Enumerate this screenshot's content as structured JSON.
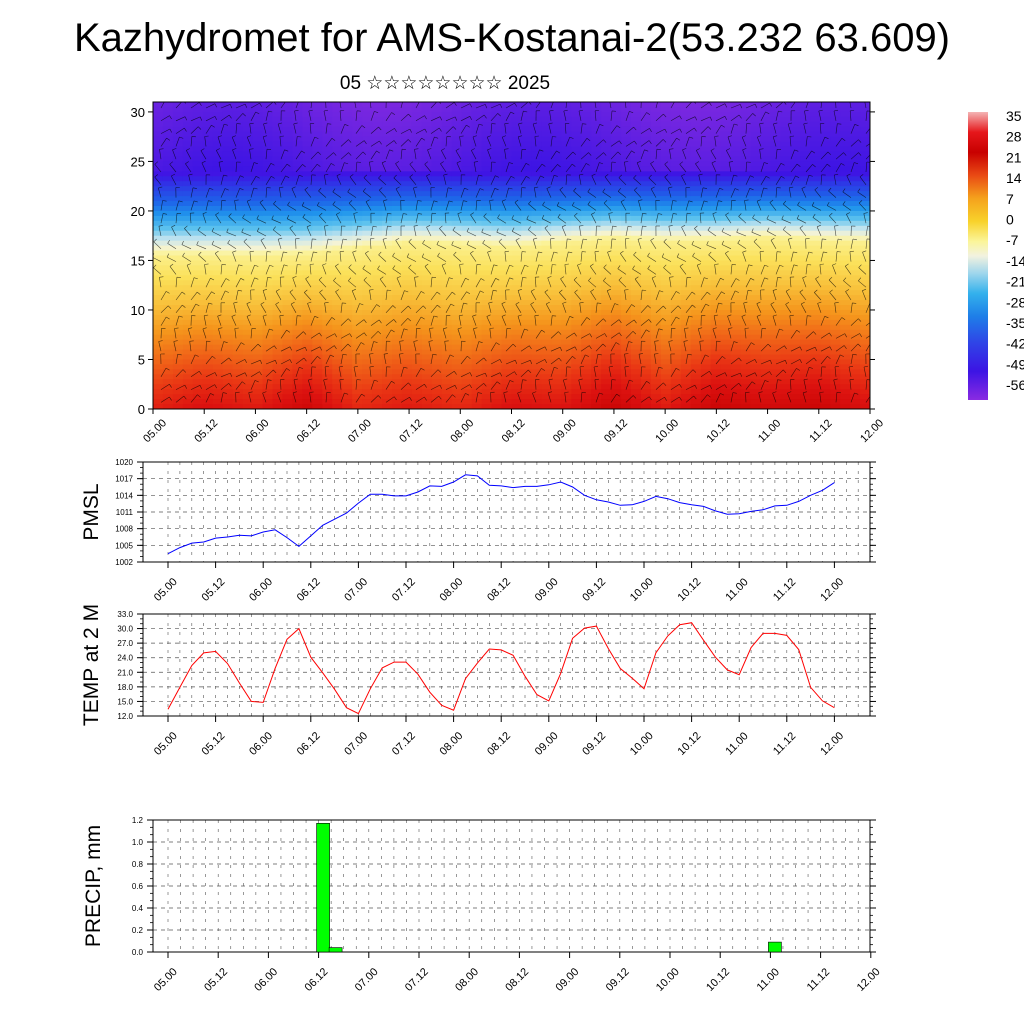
{
  "title": "Kazhydromet for AMS-Kostanai-2(53.232 63.609)",
  "subtitle": "05 ☆☆☆☆☆☆☆☆ 2025",
  "chart_data": [
    {
      "type": "heatmap",
      "name": "vertical-cross-section",
      "x_ticks": [
        "05.00",
        "05.12",
        "06.00",
        "06.12",
        "07.00",
        "07.12",
        "08.00",
        "08.12",
        "09.00",
        "09.12",
        "10.00",
        "10.12",
        "11.00",
        "11.12",
        "12.00"
      ],
      "y_ticks": [
        0,
        5,
        10,
        15,
        20,
        25,
        30
      ],
      "ylim": [
        0,
        31
      ],
      "colorbar": {
        "labels": [
          "35",
          "28",
          "21",
          "14",
          "7",
          "0",
          "-7",
          "-14",
          "-21",
          "-28",
          "-35",
          "-42",
          "-49",
          "-56"
        ],
        "colors": [
          "#f4b4b4",
          "#e6171b",
          "#c80000",
          "#e94a14",
          "#f5a21c",
          "#f8d22b",
          "#fbf59a",
          "#f2f2e0",
          "#9fd6ec",
          "#33b1ec",
          "#1e7ee8",
          "#2f45e7",
          "#3c14e4",
          "#8a2be2"
        ]
      },
      "cross_section": {
        "columns_x": [
          0,
          0.5,
          1,
          1.5,
          2,
          2.5,
          3,
          3.5,
          4,
          4.5,
          5,
          5.5,
          6,
          6.5,
          7
        ],
        "freezing_level": [
          15.5,
          15.5,
          15.4,
          15.6,
          16.2,
          16.8,
          16.6,
          16.3,
          16.8,
          17.2,
          16.9,
          17.0,
          17.3,
          17.0,
          16.8
        ],
        "surface_temp": [
          23,
          26,
          24,
          29,
          22,
          24,
          22,
          26,
          25,
          30,
          24,
          30,
          28,
          30,
          26
        ]
      }
    },
    {
      "type": "line",
      "name": "pmsl",
      "ylabel": "PMSL",
      "y_ticks": [
        1002,
        1005,
        1008,
        1011,
        1014,
        1017,
        1020
      ],
      "ylim": [
        1002,
        1020
      ],
      "x_ticks": [
        "05.00",
        "05.12",
        "06.00",
        "06.12",
        "07.00",
        "07.12",
        "08.00",
        "08.12",
        "09.00",
        "09.12",
        "10.00",
        "10.12",
        "11.00",
        "11.12",
        "12.00"
      ],
      "series": [
        {
          "color": "#0000ff",
          "values": [
            1003.5,
            1004.6,
            1005.4,
            1005.6,
            1006.3,
            1006.5,
            1006.8,
            1006.7,
            1007.4,
            1007.8,
            1006.4,
            1004.8,
            1006.7,
            1008.6,
            1009.7,
            1010.8,
            1012.6,
            1014.2,
            1014.2,
            1013.9,
            1013.9,
            1014.6,
            1015.7,
            1015.6,
            1016.4,
            1017.7,
            1017.5,
            1015.8,
            1015.7,
            1015.4,
            1015.6,
            1015.6,
            1015.9,
            1016.4,
            1015.5,
            1014.0,
            1013.2,
            1012.8,
            1012.2,
            1012.3,
            1012.9,
            1013.8,
            1013.4,
            1012.7,
            1012.3,
            1012.0,
            1011.2,
            1010.6,
            1010.7,
            1011.1,
            1011.4,
            1012.1,
            1012.2,
            1012.9,
            1014.0,
            1014.9,
            1016.3
          ]
        }
      ]
    },
    {
      "type": "line",
      "name": "temp-2m",
      "ylabel": "TEMP at 2 M",
      "y_ticks": [
        "12.0",
        "15.0",
        "18.0",
        "21.0",
        "24.0",
        "27.0",
        "30.0",
        "33.0"
      ],
      "ylim": [
        12,
        33
      ],
      "x_ticks": [
        "05.00",
        "05.12",
        "06.00",
        "06.12",
        "07.00",
        "07.12",
        "08.00",
        "08.12",
        "09.00",
        "09.12",
        "10.00",
        "10.12",
        "11.00",
        "11.12",
        "12.00"
      ],
      "series": [
        {
          "color": "#ff0000",
          "values": [
            13.4,
            17.9,
            22.4,
            25.0,
            25.3,
            22.8,
            18.8,
            15.0,
            14.8,
            21.8,
            27.8,
            30.0,
            24.1,
            20.9,
            17.5,
            13.7,
            12.5,
            17.6,
            21.9,
            23.1,
            23.1,
            20.6,
            16.9,
            14.2,
            13.2,
            19.7,
            22.9,
            25.8,
            25.6,
            24.5,
            20.2,
            16.4,
            15.1,
            20.8,
            28.0,
            30.1,
            30.5,
            25.9,
            21.8,
            19.8,
            17.6,
            25.0,
            28.5,
            30.8,
            31.2,
            27.6,
            24.1,
            21.5,
            20.5,
            26.1,
            29.0,
            29.0,
            28.6,
            25.7,
            17.9,
            15.1,
            13.7
          ]
        }
      ]
    },
    {
      "type": "bar",
      "name": "precipitation",
      "ylabel": "PRECIP, mm",
      "y_ticks": [
        "0.0",
        "0.2",
        "0.4",
        "0.6",
        "0.8",
        "1.0",
        "1.2"
      ],
      "ylim": [
        0,
        1.2
      ],
      "x_ticks": [
        "05.00",
        "05.12",
        "06.00",
        "06.12",
        "07.00",
        "07.12",
        "08.00",
        "08.12",
        "09.00",
        "09.12",
        "10.00",
        "10.12",
        "11.00",
        "11.12",
        "12.00"
      ],
      "bars": [
        {
          "x": 1.5,
          "value": 1.17
        },
        {
          "x": 1.625,
          "value": 0.04
        },
        {
          "x": 6.0,
          "value": 0.09
        }
      ],
      "bar_color": "#00ff00"
    }
  ]
}
